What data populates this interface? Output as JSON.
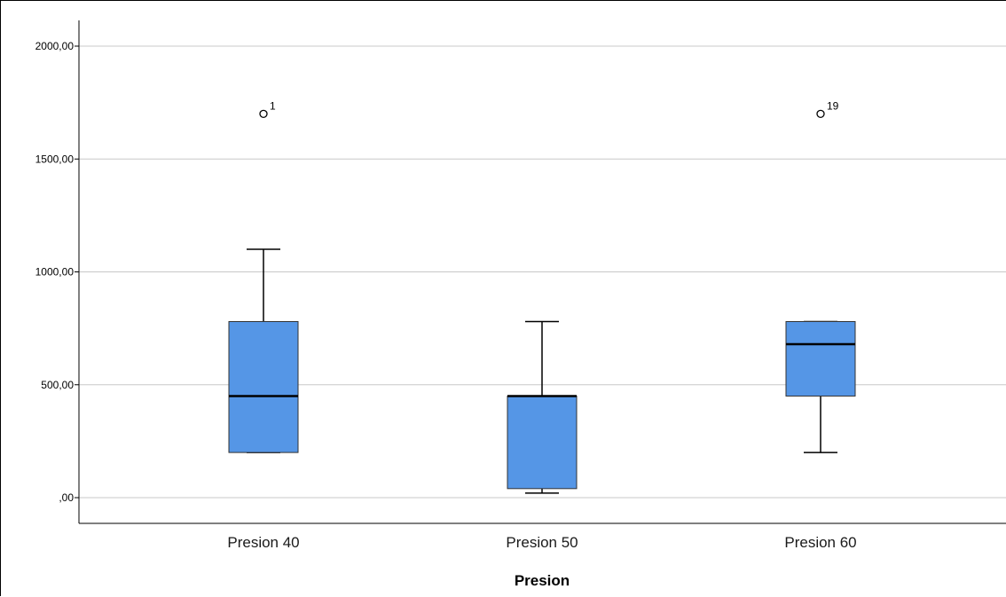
{
  "chart_data": {
    "type": "boxplot",
    "title": "",
    "xlabel": "Presion",
    "ylabel": "",
    "ylim": [
      -115,
      2115
    ],
    "yticks": [
      {
        "value": 0,
        "label": ",00"
      },
      {
        "value": 500,
        "label": "500,00"
      },
      {
        "value": 1000,
        "label": "1000,00"
      },
      {
        "value": 1500,
        "label": "1500,00"
      },
      {
        "value": 2000,
        "label": "2000,00"
      }
    ],
    "grid": true,
    "box_color": "#5596e6",
    "categories": [
      "Presion 40",
      "Presion 50",
      "Presion 60"
    ],
    "boxes": [
      {
        "category": "Presion 40",
        "whisker_low": 200,
        "q1": 200,
        "median": 450,
        "q3": 780,
        "whisker_high": 1100,
        "outliers": [
          {
            "value": 1700,
            "label": "1"
          }
        ]
      },
      {
        "category": "Presion 50",
        "whisker_low": 20,
        "q1": 40,
        "median": 450,
        "q3": 450,
        "whisker_high": 780,
        "outliers": []
      },
      {
        "category": "Presion 60",
        "whisker_low": 200,
        "q1": 450,
        "median": 680,
        "q3": 780,
        "whisker_high": 780,
        "outliers": [
          {
            "value": 1700,
            "label": "19"
          }
        ]
      }
    ]
  }
}
